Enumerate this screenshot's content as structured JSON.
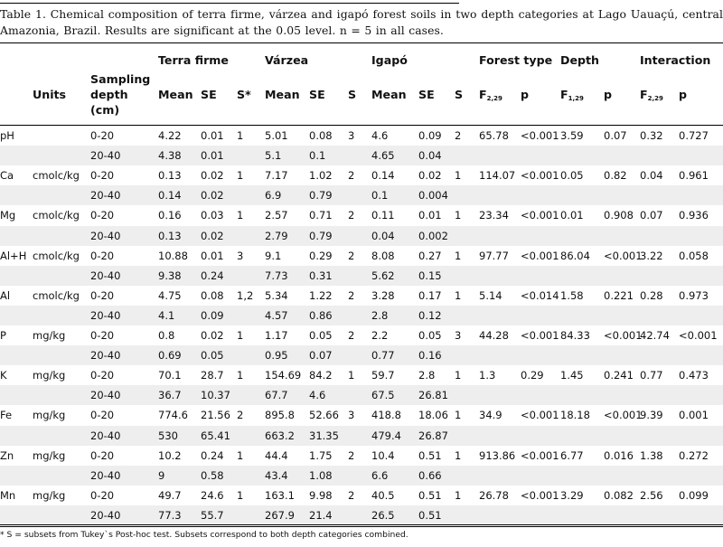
{
  "caption": "Table 1. Chemical composition of terra firme, várzea and igapó forest soils in two depth categories at Lago Uauaçú, central Amazonia, Brazil. Results are significant at the 0.05 level. n = 5 in all cases.",
  "groups": [
    "Terra firme",
    "Várzea",
    "Igapó",
    "Forest type",
    "Depth",
    "Interaction"
  ],
  "columns": {
    "units": "Units",
    "depth": [
      "Sampling",
      "depth",
      "(cm)"
    ],
    "mean": "Mean",
    "se": "SE",
    "s_star": "S*",
    "s": "S",
    "f": "F",
    "p": "p",
    "f_forest_sub": "2,29",
    "f_depth_sub": "1,29",
    "f_inter_sub": "2,29"
  },
  "rows": [
    [
      "pH",
      "",
      "0-20",
      "4.22",
      "0.01",
      "1",
      "5.01",
      "0.08",
      "3",
      "4.6",
      "0.09",
      "2",
      "65.78",
      "<0.001",
      "3.59",
      "0.07",
      "0.32",
      "0.727"
    ],
    [
      "",
      "",
      "20-40",
      "4.38",
      "0.01",
      "",
      "5.1",
      "0.1",
      "",
      "4.65",
      "0.04",
      "",
      "",
      "",
      "",
      "",
      "",
      ""
    ],
    [
      "Ca",
      "cmolc/kg",
      "0-20",
      "0.13",
      "0.02",
      "1",
      "7.17",
      "1.02",
      "2",
      "0.14",
      "0.02",
      "1",
      "114.07",
      "<0.001",
      "0.05",
      "0.82",
      "0.04",
      "0.961"
    ],
    [
      "",
      "",
      "20-40",
      "0.14",
      "0.02",
      "",
      "6.9",
      "0.79",
      "",
      "0.1",
      "0.004",
      "",
      "",
      "",
      "",
      "",
      "",
      ""
    ],
    [
      "Mg",
      "cmolc/kg",
      "0-20",
      "0.16",
      "0.03",
      "1",
      "2.57",
      "0.71",
      "2",
      "0.11",
      "0.01",
      "1",
      "23.34",
      "<0.001",
      "0.01",
      "0.908",
      "0.07",
      "0.936"
    ],
    [
      "",
      "",
      "20-40",
      "0.13",
      "0.02",
      "",
      "2.79",
      "0.79",
      "",
      "0.04",
      "0.002",
      "",
      "",
      "",
      "",
      "",
      "",
      ""
    ],
    [
      "Al+H",
      "cmolc/kg",
      "0-20",
      "10.88",
      "0.01",
      "3",
      "9.1",
      "0.29",
      "2",
      "8.08",
      "0.27",
      "1",
      "97.77",
      "<0.001",
      "86.04",
      "<0.001",
      "3.22",
      "0.058"
    ],
    [
      "",
      "",
      "20-40",
      "9.38",
      "0.24",
      "",
      "7.73",
      "0.31",
      "",
      "5.62",
      "0.15",
      "",
      "",
      "",
      "",
      "",
      "",
      ""
    ],
    [
      "Al",
      "cmolc/kg",
      "0-20",
      "4.75",
      "0.08",
      "1,2",
      "5.34",
      "1.22",
      "2",
      "3.28",
      "0.17",
      "1",
      "5.14",
      "<0.014",
      "1.58",
      "0.221",
      "0.28",
      "0.973"
    ],
    [
      "",
      "",
      "20-40",
      "4.1",
      "0.09",
      "",
      "4.57",
      "0.86",
      "",
      "2.8",
      "0.12",
      "",
      "",
      "",
      "",
      "",
      "",
      ""
    ],
    [
      "P",
      "mg/kg",
      "0-20",
      "0.8",
      "0.02",
      "1",
      "1.17",
      "0.05",
      "2",
      "2.2",
      "0.05",
      "3",
      "44.28",
      "<0.001",
      "84.33",
      "<0.001",
      "42.74",
      "<0.001"
    ],
    [
      "",
      "",
      "20-40",
      "0.69",
      "0.05",
      "",
      "0.95",
      "0.07",
      "",
      "0.77",
      "0.16",
      "",
      "",
      "",
      "",
      "",
      "",
      ""
    ],
    [
      "K",
      "mg/kg",
      "0-20",
      "70.1",
      "28.7",
      "1",
      "154.69",
      "84.2",
      "1",
      "59.7",
      "2.8",
      "1",
      "1.3",
      "0.29",
      "1.45",
      "0.241",
      "0.77",
      "0.473"
    ],
    [
      "",
      "",
      "20-40",
      "36.7",
      "10.37",
      "",
      "67.7",
      "4.6",
      "",
      "67.5",
      "26.81",
      "",
      "",
      "",
      "",
      "",
      "",
      ""
    ],
    [
      "Fe",
      "mg/kg",
      "0-20",
      "774.6",
      "21.56",
      "2",
      "895.8",
      "52.66",
      "3",
      "418.8",
      "18.06",
      "1",
      "34.9",
      "<0.001",
      "18.18",
      "<0.001",
      "9.39",
      "0.001"
    ],
    [
      "",
      "",
      "20-40",
      "530",
      "65.41",
      "",
      "663.2",
      "31.35",
      "",
      "479.4",
      "26.87",
      "",
      "",
      "",
      "",
      "",
      "",
      ""
    ],
    [
      "Zn",
      "mg/kg",
      "0-20",
      "10.2",
      "0.24",
      "1",
      "44.4",
      "1.75",
      "2",
      "10.4",
      "0.51",
      "1",
      "913.86",
      "<0.001",
      "6.77",
      "0.016",
      "1.38",
      "0.272"
    ],
    [
      "",
      "",
      "20-40",
      "9",
      "0.58",
      "",
      "43.4",
      "1.08",
      "",
      "6.6",
      "0.66",
      "",
      "",
      "",
      "",
      "",
      "",
      ""
    ],
    [
      "Mn",
      "mg/kg",
      "0-20",
      "49.7",
      "24.6",
      "1",
      "163.1",
      "9.98",
      "2",
      "40.5",
      "0.51",
      "1",
      "26.78",
      "<0.001",
      "3.29",
      "0.082",
      "2.56",
      "0.099"
    ],
    [
      "",
      "",
      "20-40",
      "77.3",
      "55.7",
      "",
      "267.9",
      "21.4",
      "",
      "26.5",
      "0.51",
      "",
      "",
      "",
      "",
      "",
      "",
      ""
    ]
  ],
  "footnote": "* S = subsets from Tukey`s Post-hoc test. Subsets correspond to both depth categories combined.",
  "colors": {
    "band": "#eeeeee",
    "text": "#111111",
    "rule": "#000000"
  }
}
